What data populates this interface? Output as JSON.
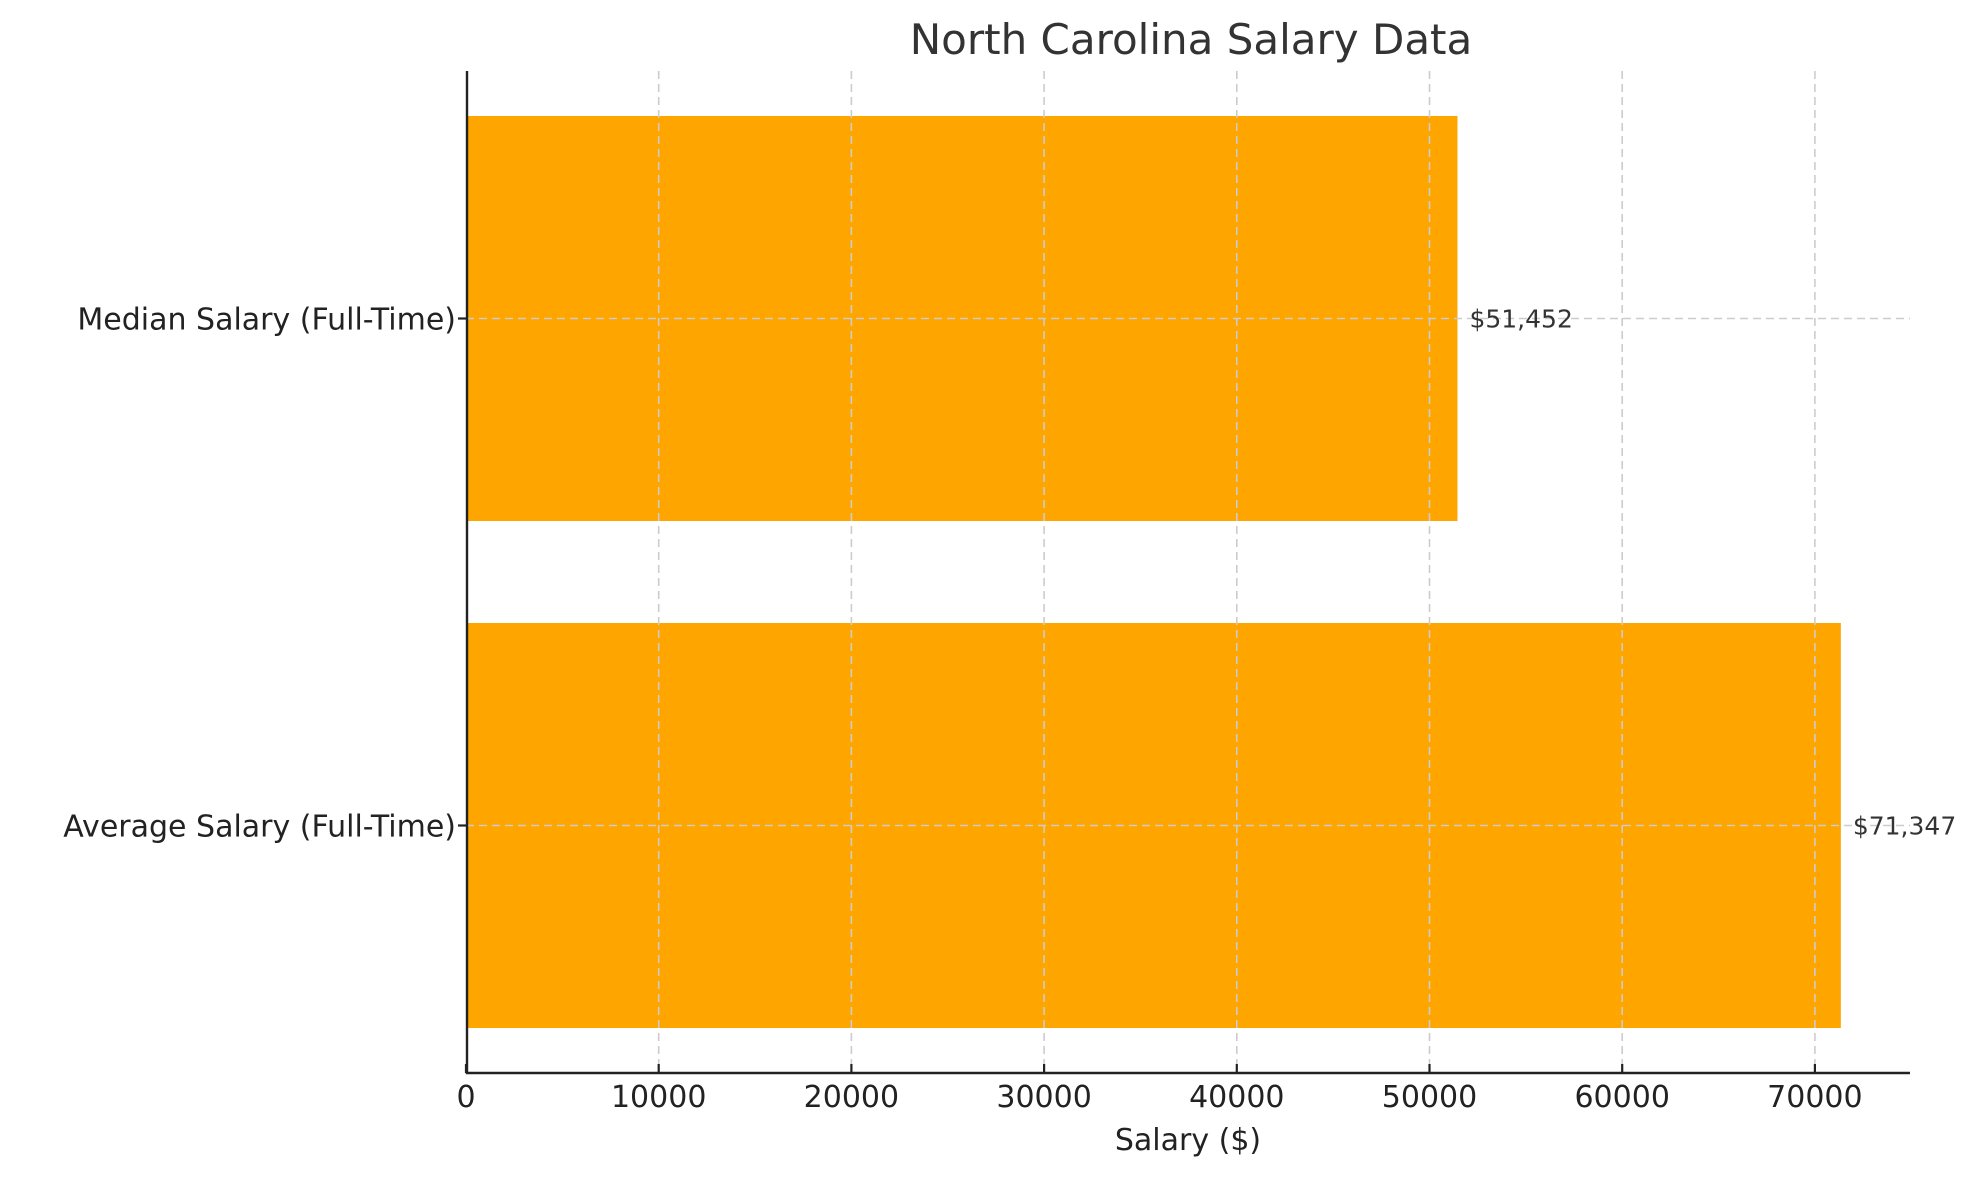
{
  "chart_data": {
    "type": "bar",
    "orientation": "horizontal",
    "title": "North Carolina Salary Data",
    "xlabel": "Salary ($)",
    "ylabel": "",
    "categories": [
      "Median Salary (Full-Time)",
      "Average Salary (Full-Time)"
    ],
    "values": [
      51452,
      71347
    ],
    "value_labels": [
      "$51,452",
      "$71,347"
    ],
    "xlim": [
      0,
      75000
    ],
    "xticks": [
      0,
      10000,
      20000,
      30000,
      40000,
      50000,
      60000,
      70000
    ],
    "xtick_labels": [
      "0",
      "10000",
      "20000",
      "30000",
      "40000",
      "50000",
      "60000",
      "70000"
    ],
    "grid": true,
    "grid_style": "dashed",
    "legend": null,
    "colors": {
      "bar": "#FFA500",
      "grid": "#cccccc",
      "axis": "#222222",
      "title": "#333333"
    }
  }
}
